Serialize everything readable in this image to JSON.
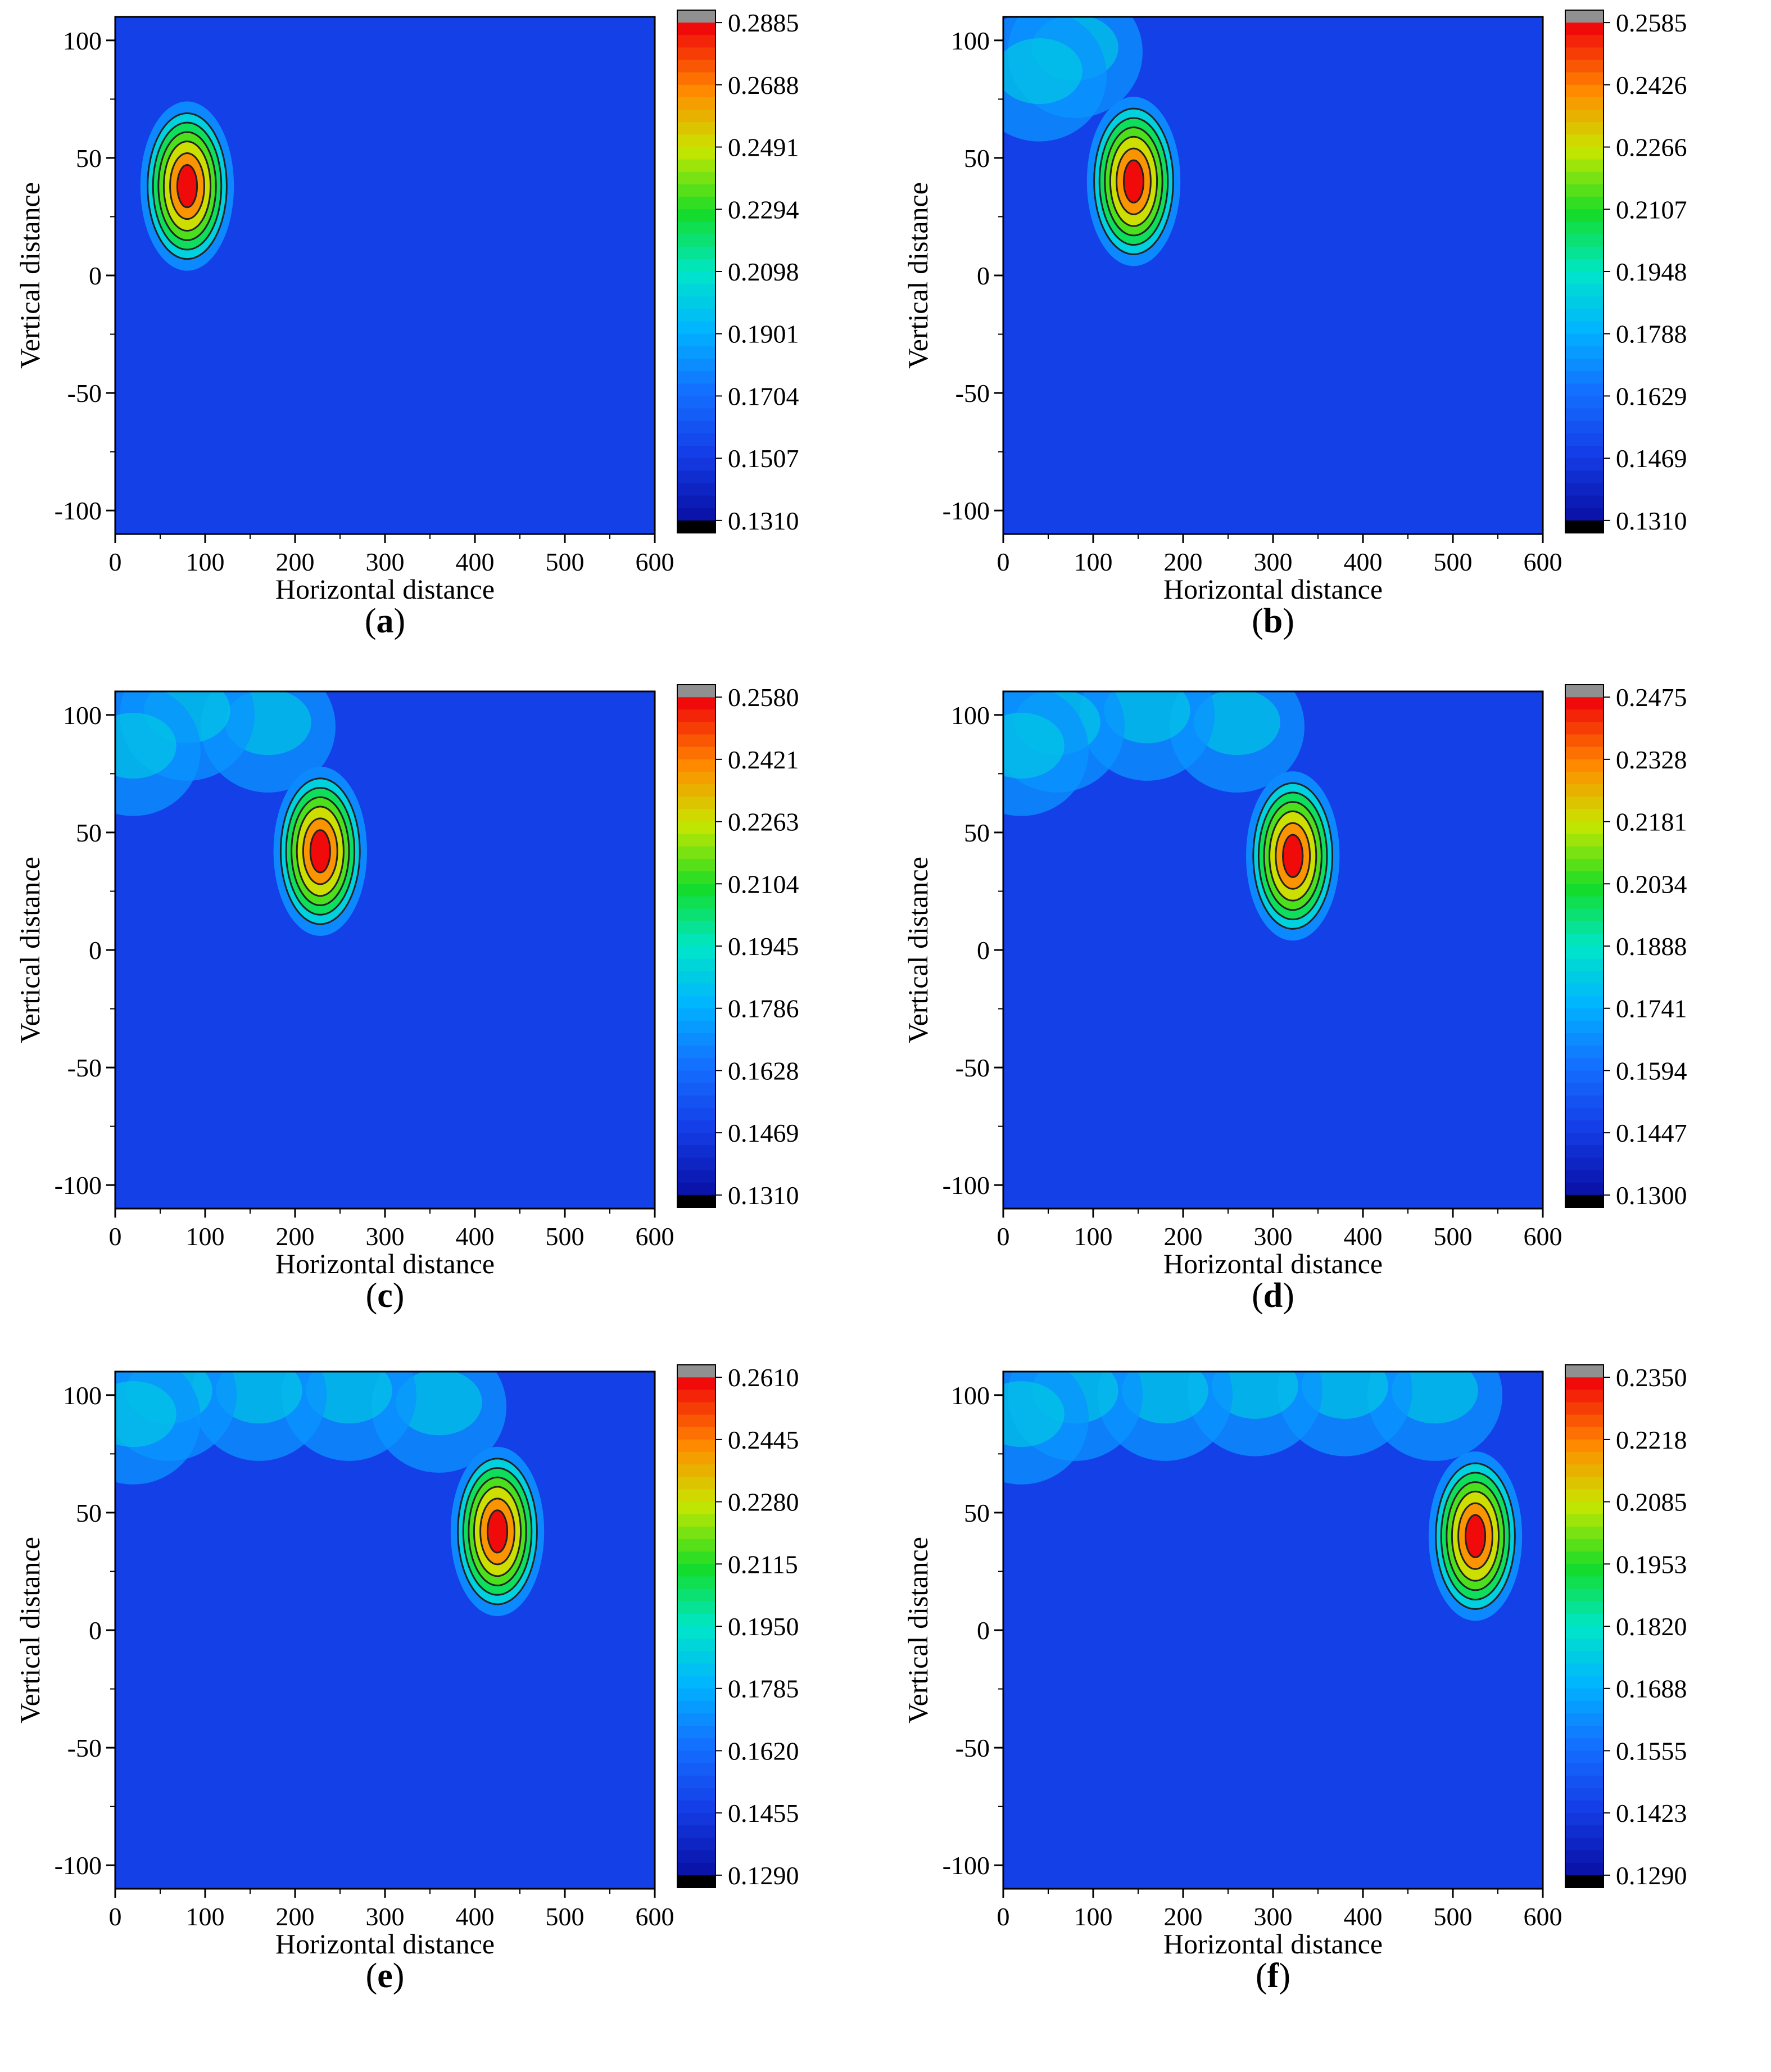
{
  "chart_data": [
    {
      "type": "heatmap",
      "panel": "a",
      "xlabel": "Horizontal distance",
      "ylabel": "Vertical distance",
      "xlim": [
        0,
        600
      ],
      "ylim": [
        -110,
        110
      ],
      "xticks": [
        0,
        100,
        200,
        300,
        400,
        500,
        600
      ],
      "yticks": [
        100,
        50,
        0,
        -50,
        -100
      ],
      "colorbar_ticks": [
        "0.2885",
        "0.2688",
        "0.2491",
        "0.2294",
        "0.2098",
        "0.1901",
        "0.1704",
        "0.1507",
        "0.1310"
      ],
      "colorbar_range": [
        0.131,
        0.2885
      ],
      "peak": {
        "x": 80,
        "y": 38
      },
      "plume": []
    },
    {
      "type": "heatmap",
      "panel": "b",
      "xlabel": "Horizontal distance",
      "ylabel": "Vertical distance",
      "xlim": [
        0,
        600
      ],
      "ylim": [
        -110,
        110
      ],
      "xticks": [
        0,
        100,
        200,
        300,
        400,
        500,
        600
      ],
      "yticks": [
        100,
        50,
        0,
        -50,
        -100
      ],
      "colorbar_ticks": [
        "0.2585",
        "0.2426",
        "0.2266",
        "0.2107",
        "0.1948",
        "0.1788",
        "0.1629",
        "0.1469",
        "0.1310"
      ],
      "colorbar_range": [
        0.131,
        0.2585
      ],
      "peak": {
        "x": 145,
        "y": 40
      },
      "plume": [
        [
          80,
          95
        ],
        [
          40,
          85
        ]
      ]
    },
    {
      "type": "heatmap",
      "panel": "c",
      "xlabel": "Horizontal distance",
      "ylabel": "Vertical distance",
      "xlim": [
        0,
        600
      ],
      "ylim": [
        -110,
        110
      ],
      "xticks": [
        0,
        100,
        200,
        300,
        400,
        500,
        600
      ],
      "yticks": [
        100,
        50,
        0,
        -50,
        -100
      ],
      "colorbar_ticks": [
        "0.2580",
        "0.2421",
        "0.2263",
        "0.2104",
        "0.1945",
        "0.1786",
        "0.1628",
        "0.1469",
        "0.1310"
      ],
      "colorbar_range": [
        0.131,
        0.258
      ],
      "peak": {
        "x": 228,
        "y": 42
      },
      "plume": [
        [
          170,
          95
        ],
        [
          80,
          100
        ],
        [
          20,
          85
        ]
      ]
    },
    {
      "type": "heatmap",
      "panel": "d",
      "xlabel": "Horizontal distance",
      "ylabel": "Vertical distance",
      "xlim": [
        0,
        600
      ],
      "ylim": [
        -110,
        110
      ],
      "xticks": [
        0,
        100,
        200,
        300,
        400,
        500,
        600
      ],
      "yticks": [
        100,
        50,
        0,
        -50,
        -100
      ],
      "colorbar_ticks": [
        "0.2475",
        "0.2328",
        "0.2181",
        "0.2034",
        "0.1888",
        "0.1741",
        "0.1594",
        "0.1447",
        "0.1300"
      ],
      "colorbar_range": [
        0.13,
        0.2475
      ],
      "peak": {
        "x": 322,
        "y": 40
      },
      "plume": [
        [
          260,
          95
        ],
        [
          160,
          100
        ],
        [
          60,
          95
        ],
        [
          20,
          85
        ]
      ]
    },
    {
      "type": "heatmap",
      "panel": "e",
      "xlabel": "Horizontal distance",
      "ylabel": "Vertical distance",
      "xlim": [
        0,
        600
      ],
      "ylim": [
        -110,
        110
      ],
      "xticks": [
        0,
        100,
        200,
        300,
        400,
        500,
        600
      ],
      "yticks": [
        100,
        50,
        0,
        -50,
        -100
      ],
      "colorbar_ticks": [
        "0.2610",
        "0.2445",
        "0.2280",
        "0.2115",
        "0.1950",
        "0.1785",
        "0.1620",
        "0.1455",
        "0.1290"
      ],
      "colorbar_range": [
        0.129,
        0.261
      ],
      "peak": {
        "x": 425,
        "y": 42
      },
      "plume": [
        [
          360,
          95
        ],
        [
          260,
          100
        ],
        [
          160,
          100
        ],
        [
          60,
          100
        ],
        [
          20,
          90
        ]
      ]
    },
    {
      "type": "heatmap",
      "panel": "f",
      "xlabel": "Horizontal distance",
      "ylabel": "Vertical distance",
      "xlim": [
        0,
        600
      ],
      "ylim": [
        -110,
        110
      ],
      "xticks": [
        0,
        100,
        200,
        300,
        400,
        500,
        600
      ],
      "yticks": [
        100,
        50,
        0,
        -50,
        -100
      ],
      "colorbar_ticks": [
        "0.2350",
        "0.2218",
        "0.2085",
        "0.1953",
        "0.1820",
        "0.1688",
        "0.1555",
        "0.1423",
        "0.1290"
      ],
      "colorbar_range": [
        0.129,
        0.235
      ],
      "peak": {
        "x": 525,
        "y": 40
      },
      "plume": [
        [
          480,
          100
        ],
        [
          380,
          102
        ],
        [
          280,
          102
        ],
        [
          180,
          100
        ],
        [
          80,
          100
        ],
        [
          20,
          90
        ]
      ]
    }
  ]
}
